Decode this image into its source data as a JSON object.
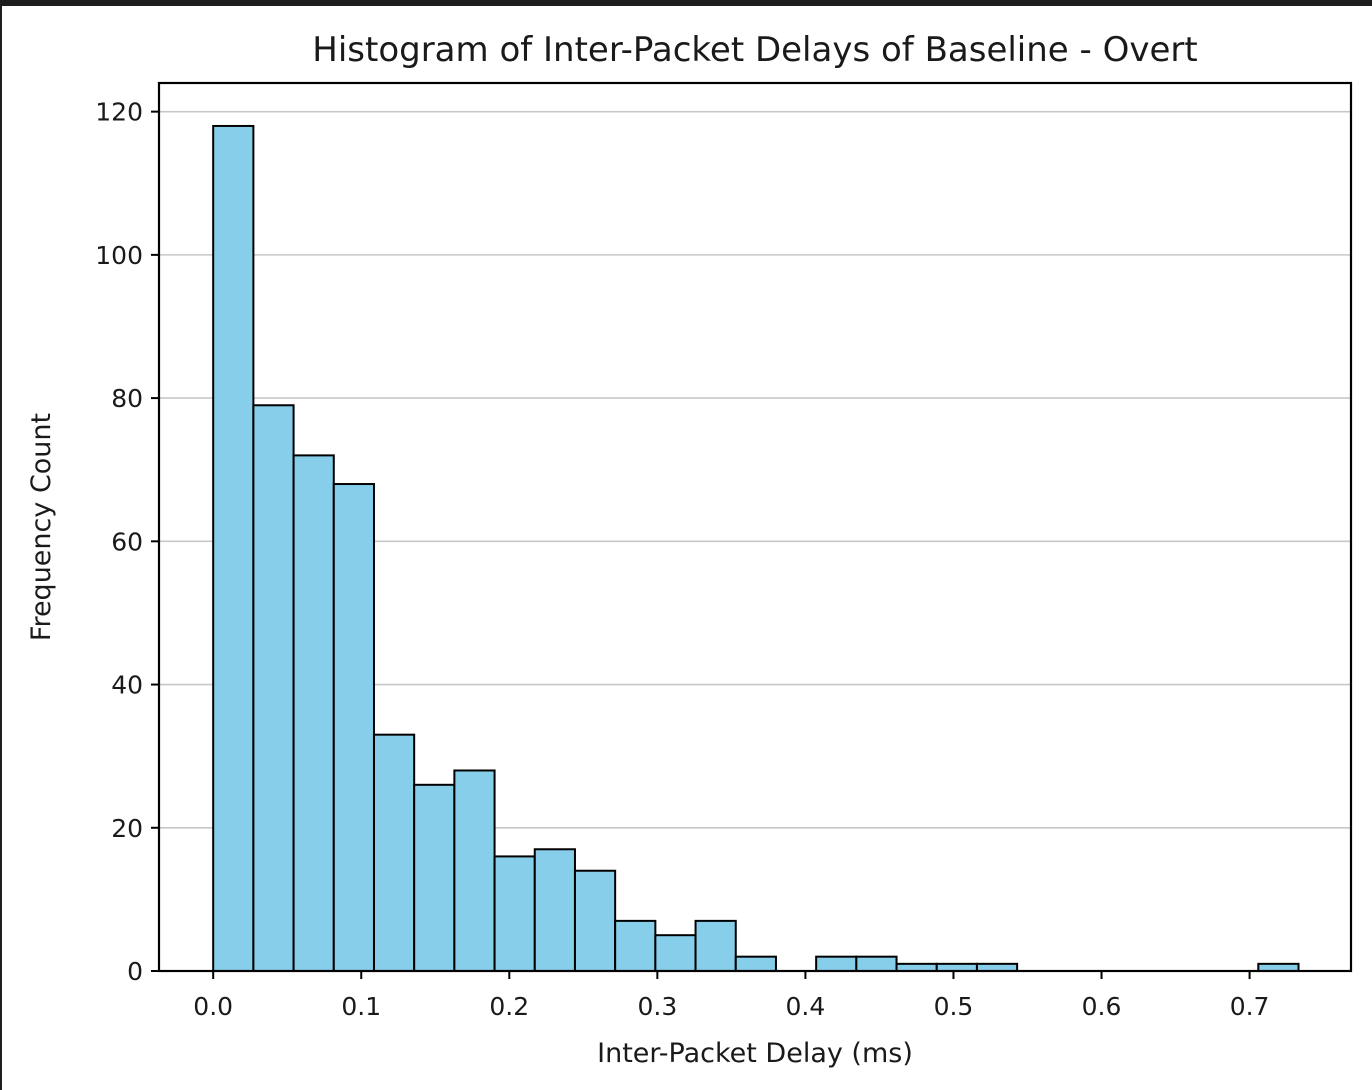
{
  "chart_data": {
    "type": "bar",
    "title": "Histogram of Inter-Packet Delays of Baseline - Overt",
    "xlabel": "Inter-Packet Delay (ms)",
    "ylabel": "Frequency Count",
    "xlim": [
      -0.0366,
      0.7685
    ],
    "ylim": [
      0,
      124
    ],
    "xticks": [
      0.0,
      0.1,
      0.2,
      0.3,
      0.4,
      0.5,
      0.6,
      0.7
    ],
    "xtick_labels": [
      "0.0",
      "0.1",
      "0.2",
      "0.3",
      "0.4",
      "0.5",
      "0.6",
      "0.7"
    ],
    "yticks": [
      0,
      20,
      40,
      60,
      80,
      100,
      120
    ],
    "ytick_labels": [
      "0",
      "20",
      "40",
      "60",
      "80",
      "100",
      "120"
    ],
    "grid": "y",
    "bar_color": "#87ceeb",
    "edge_color": "#000000",
    "bin_start": 0.0,
    "bin_width": 0.02715,
    "counts": [
      118,
      79,
      72,
      68,
      33,
      26,
      28,
      16,
      17,
      14,
      7,
      5,
      7,
      2,
      0,
      2,
      2,
      1,
      1,
      1,
      0,
      0,
      0,
      0,
      0,
      0,
      1
    ]
  }
}
